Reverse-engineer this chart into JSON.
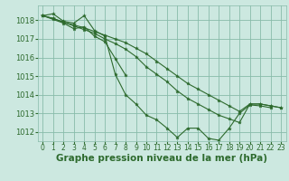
{
  "background_color": "#cce8e0",
  "grid_color": "#88bbaa",
  "line_color": "#2d6a2d",
  "marker_color": "#2d6a2d",
  "xlabel": "Graphe pression niveau de la mer (hPa)",
  "xlabel_fontsize": 7.5,
  "ylabel_fontsize": 6,
  "tick_fontsize": 5.5,
  "xlim": [
    -0.5,
    23.5
  ],
  "ylim": [
    1011.5,
    1018.8
  ],
  "yticks": [
    1012,
    1013,
    1014,
    1015,
    1016,
    1017,
    1018
  ],
  "xticks": [
    0,
    1,
    2,
    3,
    4,
    5,
    6,
    7,
    8,
    9,
    10,
    11,
    12,
    13,
    14,
    15,
    16,
    17,
    18,
    19,
    20,
    21,
    22,
    23
  ],
  "series": [
    [
      1018.25,
      1018.35,
      1017.95,
      1017.85,
      1018.25,
      1017.45,
      1017.15,
      1015.1,
      1014.0,
      1013.5,
      1012.9,
      1012.65,
      1012.2,
      1011.7,
      1012.2,
      1012.2,
      1011.65,
      1011.55,
      1012.2,
      1013.0,
      1013.45,
      1013.4,
      1013.3,
      null
    ],
    [
      1018.25,
      1018.05,
      1017.85,
      1017.55,
      1017.65,
      1017.15,
      1016.85,
      1015.95,
      1015.05,
      null,
      null,
      null,
      null,
      null,
      null,
      null,
      null,
      null,
      null,
      null,
      null,
      null,
      null,
      null
    ],
    [
      1018.25,
      1018.1,
      1017.9,
      1017.7,
      1017.5,
      1017.3,
      1017.0,
      1016.75,
      1016.45,
      1016.05,
      1015.5,
      1015.1,
      1014.7,
      1014.2,
      1013.8,
      1013.5,
      1013.2,
      1012.9,
      1012.7,
      1012.5,
      1013.5,
      1013.5,
      1013.4,
      1013.3
    ],
    [
      1018.25,
      1018.1,
      1017.9,
      1017.75,
      1017.6,
      1017.4,
      1017.2,
      1017.0,
      1016.8,
      1016.5,
      1016.2,
      1015.8,
      1015.4,
      1015.0,
      1014.6,
      1014.3,
      1014.0,
      1013.7,
      1013.4,
      1013.1,
      1013.5,
      1013.5,
      1013.4,
      1013.3
    ]
  ]
}
